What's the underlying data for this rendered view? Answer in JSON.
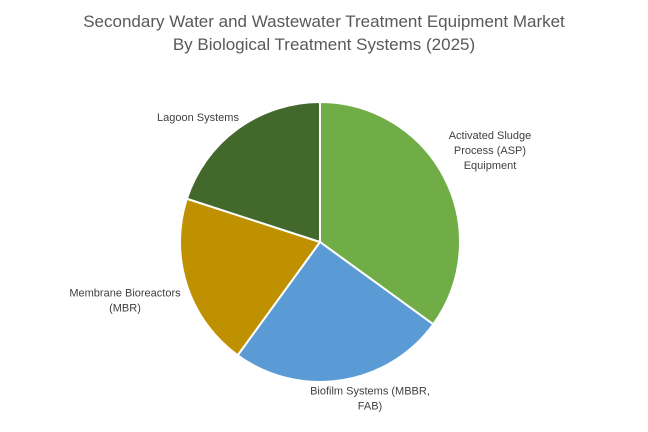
{
  "chart_data": {
    "type": "pie",
    "title": "Secondary Water and Wastewater Treatment Equipment Market",
    "subtitle": "By Biological Treatment Systems (2025)",
    "slices": [
      {
        "label_lines": [
          "Activated Sludge",
          "Process (ASP)",
          "Equipment"
        ],
        "value": 35,
        "color": "#70ad47"
      },
      {
        "label_lines": [
          "Biofilm Systems (MBBR,",
          "FAB)"
        ],
        "value": 25,
        "color": "#5b9bd5"
      },
      {
        "label_lines": [
          "Membrane Bioreactors",
          "(MBR)"
        ],
        "value": 20,
        "color": "#bf9000"
      },
      {
        "label_lines": [
          "Lagoon Systems"
        ],
        "value": 20,
        "color": "#43682b"
      }
    ],
    "start_angle_deg": 0,
    "direction": "clockwise",
    "legend": "none",
    "data_labels": "category-name-outside",
    "slice_border_color": "#ffffff"
  }
}
